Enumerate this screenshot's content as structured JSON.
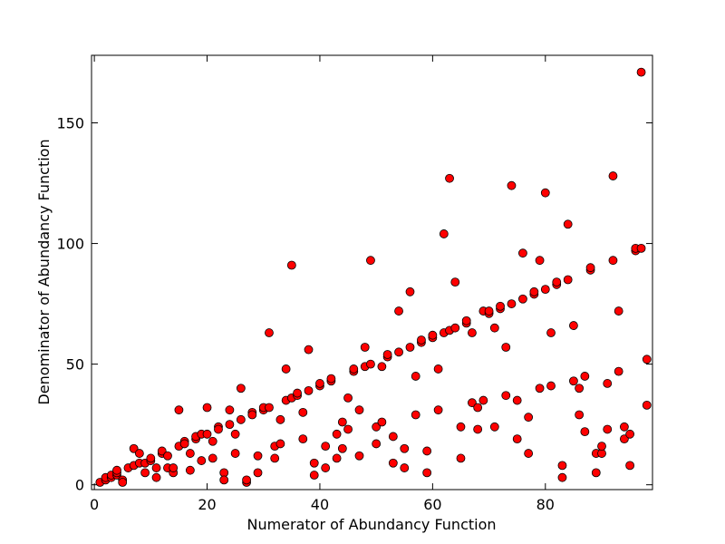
{
  "chart_data": {
    "type": "scatter",
    "title": "",
    "xlabel": "Numerator of Abundancy Function",
    "ylabel": "Denominator of Abundancy Function",
    "xlim": [
      -0.5,
      99
    ],
    "ylim": [
      -2,
      178
    ],
    "x_ticks": [
      0,
      20,
      40,
      60,
      80
    ],
    "y_ticks": [
      0,
      50,
      100,
      150
    ],
    "grid": false,
    "marker_color": "#ff0000",
    "marker_edge_color": "#000000",
    "points": [
      [
        1,
        1
      ],
      [
        2,
        2
      ],
      [
        2,
        3
      ],
      [
        3,
        3
      ],
      [
        3,
        4
      ],
      [
        4,
        4
      ],
      [
        4,
        5
      ],
      [
        4,
        6
      ],
      [
        5,
        2
      ],
      [
        5,
        1
      ],
      [
        6,
        7
      ],
      [
        7,
        8
      ],
      [
        7,
        15
      ],
      [
        8,
        9
      ],
      [
        8,
        13
      ],
      [
        9,
        5
      ],
      [
        9,
        9
      ],
      [
        10,
        10
      ],
      [
        10,
        11
      ],
      [
        11,
        3
      ],
      [
        11,
        7
      ],
      [
        12,
        13
      ],
      [
        12,
        14
      ],
      [
        13,
        7
      ],
      [
        13,
        12
      ],
      [
        14,
        5
      ],
      [
        14,
        7
      ],
      [
        15,
        16
      ],
      [
        15,
        31
      ],
      [
        16,
        18
      ],
      [
        16,
        17
      ],
      [
        17,
        6
      ],
      [
        17,
        13
      ],
      [
        18,
        19
      ],
      [
        18,
        20
      ],
      [
        19,
        21
      ],
      [
        19,
        10
      ],
      [
        20,
        21
      ],
      [
        20,
        32
      ],
      [
        21,
        18
      ],
      [
        21,
        11
      ],
      [
        22,
        24
      ],
      [
        22,
        23
      ],
      [
        23,
        5
      ],
      [
        23,
        2
      ],
      [
        24,
        25
      ],
      [
        24,
        31
      ],
      [
        25,
        13
      ],
      [
        25,
        21
      ],
      [
        26,
        27
      ],
      [
        26,
        40
      ],
      [
        27,
        1
      ],
      [
        27,
        2
      ],
      [
        28,
        30
      ],
      [
        28,
        29
      ],
      [
        29,
        5
      ],
      [
        29,
        12
      ],
      [
        30,
        31
      ],
      [
        30,
        32
      ],
      [
        31,
        32
      ],
      [
        31,
        63
      ],
      [
        32,
        11
      ],
      [
        32,
        16
      ],
      [
        33,
        17
      ],
      [
        33,
        27
      ],
      [
        34,
        48
      ],
      [
        34,
        35
      ],
      [
        35,
        36
      ],
      [
        35,
        91
      ],
      [
        36,
        37
      ],
      [
        36,
        38
      ],
      [
        37,
        19
      ],
      [
        37,
        30
      ],
      [
        38,
        39
      ],
      [
        38,
        56
      ],
      [
        39,
        9
      ],
      [
        39,
        4
      ],
      [
        40,
        41
      ],
      [
        40,
        42
      ],
      [
        41,
        16
      ],
      [
        41,
        7
      ],
      [
        42,
        43
      ],
      [
        42,
        44
      ],
      [
        43,
        21
      ],
      [
        43,
        11
      ],
      [
        44,
        26
      ],
      [
        44,
        15
      ],
      [
        45,
        36
      ],
      [
        45,
        23
      ],
      [
        46,
        47
      ],
      [
        46,
        48
      ],
      [
        47,
        12
      ],
      [
        47,
        31
      ],
      [
        48,
        49
      ],
      [
        48,
        57
      ],
      [
        49,
        50
      ],
      [
        49,
        93
      ],
      [
        50,
        17
      ],
      [
        50,
        24
      ],
      [
        51,
        26
      ],
      [
        51,
        49
      ],
      [
        52,
        53
      ],
      [
        52,
        54
      ],
      [
        53,
        20
      ],
      [
        53,
        9
      ],
      [
        54,
        55
      ],
      [
        54,
        72
      ],
      [
        55,
        15
      ],
      [
        55,
        7
      ],
      [
        56,
        57
      ],
      [
        56,
        80
      ],
      [
        57,
        29
      ],
      [
        57,
        45
      ],
      [
        58,
        59
      ],
      [
        58,
        60
      ],
      [
        59,
        5
      ],
      [
        59,
        14
      ],
      [
        60,
        61
      ],
      [
        60,
        62
      ],
      [
        61,
        48
      ],
      [
        61,
        31
      ],
      [
        62,
        63
      ],
      [
        62,
        104
      ],
      [
        63,
        64
      ],
      [
        63,
        127
      ],
      [
        64,
        65
      ],
      [
        64,
        84
      ],
      [
        65,
        11
      ],
      [
        65,
        24
      ],
      [
        66,
        67
      ],
      [
        66,
        68
      ],
      [
        67,
        34
      ],
      [
        67,
        63
      ],
      [
        68,
        23
      ],
      [
        68,
        32
      ],
      [
        69,
        35
      ],
      [
        69,
        72
      ],
      [
        70,
        71
      ],
      [
        70,
        72
      ],
      [
        71,
        24
      ],
      [
        71,
        65
      ],
      [
        72,
        73
      ],
      [
        72,
        74
      ],
      [
        73,
        37
      ],
      [
        73,
        57
      ],
      [
        74,
        75
      ],
      [
        74,
        124
      ],
      [
        75,
        19
      ],
      [
        75,
        35
      ],
      [
        76,
        77
      ],
      [
        76,
        96
      ],
      [
        77,
        13
      ],
      [
        77,
        28
      ],
      [
        78,
        79
      ],
      [
        78,
        80
      ],
      [
        79,
        40
      ],
      [
        79,
        93
      ],
      [
        80,
        81
      ],
      [
        80,
        121
      ],
      [
        81,
        41
      ],
      [
        81,
        63
      ],
      [
        82,
        83
      ],
      [
        82,
        84
      ],
      [
        83,
        8
      ],
      [
        83,
        3
      ],
      [
        84,
        85
      ],
      [
        84,
        108
      ],
      [
        85,
        43
      ],
      [
        85,
        66
      ],
      [
        86,
        40
      ],
      [
        86,
        29
      ],
      [
        87,
        45
      ],
      [
        87,
        22
      ],
      [
        88,
        89
      ],
      [
        88,
        90
      ],
      [
        89,
        5
      ],
      [
        89,
        13
      ],
      [
        90,
        13
      ],
      [
        90,
        16
      ],
      [
        91,
        42
      ],
      [
        91,
        23
      ],
      [
        92,
        93
      ],
      [
        92,
        128
      ],
      [
        93,
        47
      ],
      [
        93,
        72
      ],
      [
        94,
        24
      ],
      [
        94,
        19
      ],
      [
        95,
        8
      ],
      [
        95,
        21
      ],
      [
        96,
        97
      ],
      [
        96,
        98
      ],
      [
        97,
        98
      ],
      [
        97,
        171
      ],
      [
        98,
        52
      ],
      [
        98,
        33
      ]
    ]
  }
}
